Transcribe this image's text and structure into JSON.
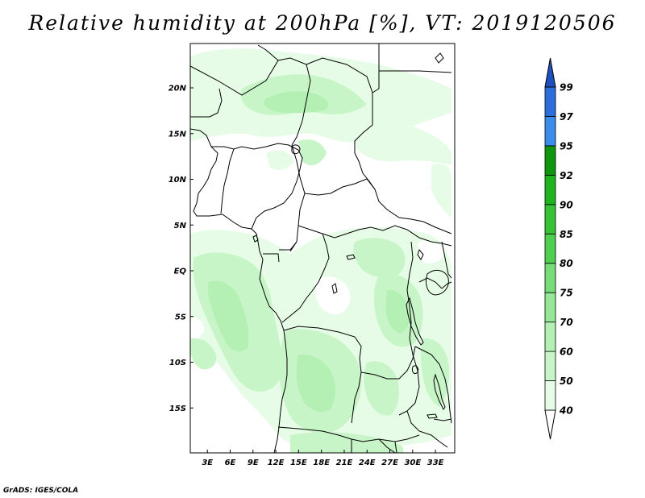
{
  "title": "Relative humidity at 200hPa [%], VT: 2019120506",
  "credit": "GrADS: IGES/COLA",
  "map": {
    "lat_labels": [
      "20N",
      "15N",
      "10N",
      "5N",
      "EQ",
      "5S",
      "10S",
      "15S"
    ],
    "lat_values": [
      20,
      15,
      10,
      5,
      0,
      -5,
      -10,
      -15
    ],
    "lon_labels": [
      "3E",
      "6E",
      "9E",
      "12E",
      "15E",
      "18E",
      "21E",
      "24E",
      "27E",
      "30E",
      "33E"
    ],
    "lon_values": [
      3,
      6,
      9,
      12,
      15,
      18,
      21,
      24,
      27,
      30,
      33
    ]
  },
  "colorbar": {
    "labels": [
      "40",
      "50",
      "60",
      "70",
      "75",
      "80",
      "85",
      "90",
      "92",
      "95",
      "97",
      "99"
    ],
    "colors": [
      "#ffffff",
      "#e6fce6",
      "#c8f5c8",
      "#b4f0b4",
      "#96e896",
      "#78dc78",
      "#50d050",
      "#37c337",
      "#1eb41e",
      "#0f960f",
      "#3c8ceb",
      "#2d6edc",
      "#1e50be"
    ]
  }
}
